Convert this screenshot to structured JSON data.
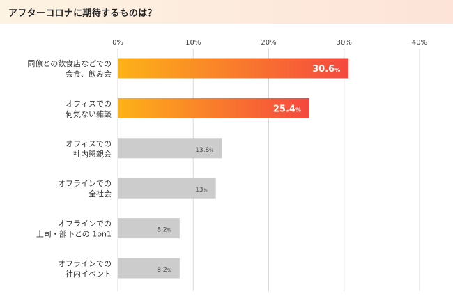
{
  "title": "アフターコロナに期待するものは？",
  "chart_data": {
    "type": "bar",
    "orientation": "horizontal",
    "title": "アフターコロナに期待するものは？",
    "categories": [
      [
        "同僚との飲食店などでの",
        "会食、飲み会"
      ],
      [
        "オフィスでの",
        "何気ない雑談"
      ],
      [
        "オフィスでの",
        "社内懇親会"
      ],
      [
        "オフラインでの",
        "全社会"
      ],
      [
        "オフラインでの",
        "上司・部下との 1on1"
      ],
      [
        "オフラインでの",
        "社内イベント"
      ]
    ],
    "values": [
      30.6,
      25.4,
      13.8,
      13,
      8.2,
      8.2
    ],
    "value_labels": [
      "30.6",
      "25.4",
      "13.8",
      "13",
      "8.2",
      "8.2"
    ],
    "value_suffix": "%",
    "highlighted": [
      true,
      true,
      false,
      false,
      false,
      false
    ],
    "xlim": [
      0,
      40
    ],
    "xticks": [
      0,
      10,
      20,
      30,
      40
    ],
    "xtick_labels": [
      "0%",
      "10%",
      "20%",
      "30%",
      "40%"
    ],
    "grid": true,
    "colors": {
      "highlight_start": "#fdb218",
      "highlight_end": "#f5483f",
      "gray": "#cccccc",
      "grid": "#d8d8d8"
    }
  }
}
